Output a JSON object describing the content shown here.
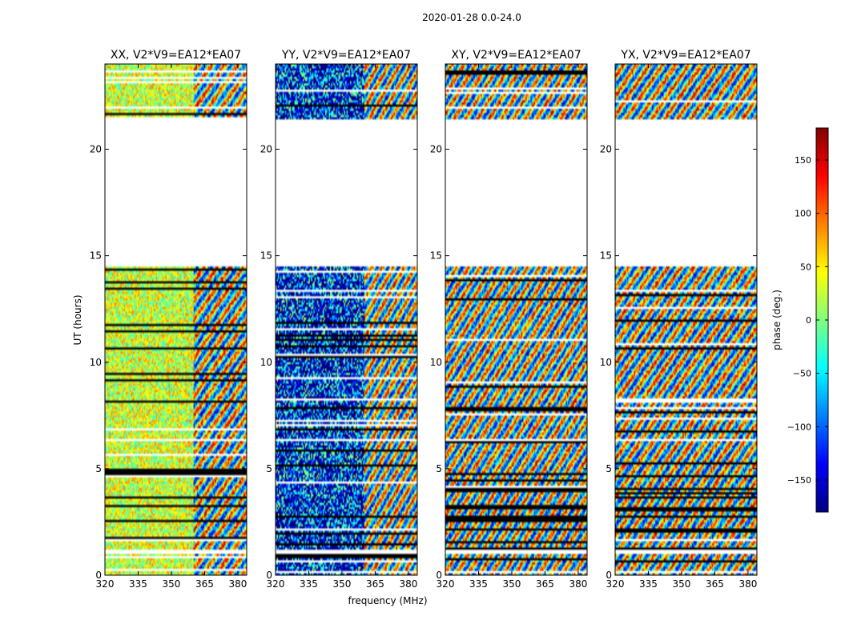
{
  "figure": {
    "suptitle": "2020-01-28 0.0-24.0",
    "xlabel": "frequency (MHz)",
    "ylabel": "UT (hours)"
  },
  "colors": {
    "jet": [
      "#000080",
      "#0000ff",
      "#0080ff",
      "#00ffff",
      "#80ff80",
      "#ffff00",
      "#ff8000",
      "#ff0000",
      "#800000"
    ],
    "flag": "#000000",
    "empty": "#ffffff"
  },
  "chart_data": {
    "type": "heatmap",
    "xlim": [
      320,
      384
    ],
    "ylim": [
      0,
      24
    ],
    "xticks": [
      320,
      335,
      350,
      365,
      380
    ],
    "yticks": [
      0,
      5,
      10,
      15,
      20
    ],
    "xtick_labels": [
      "320",
      "335",
      "350",
      "365",
      "380"
    ],
    "ytick_labels": [
      "0",
      "5",
      "10",
      "15",
      "20"
    ],
    "colorbar": {
      "label": "phase (deg.)",
      "range": [
        -180,
        180
      ],
      "ticks": [
        150,
        100,
        50,
        0,
        -50,
        -100,
        -150
      ],
      "tick_labels": [
        "150",
        "100",
        "50",
        "0",
        "−50",
        "−100",
        "−150"
      ],
      "colormap": "jet"
    },
    "panels": [
      {
        "title": "XX, V2*V9=EA12*EA07",
        "polarization": "XX",
        "seed": 11
      },
      {
        "title": "YY, V2*V9=EA12*EA07",
        "polarization": "YY",
        "seed": 23
      },
      {
        "title": "XY, V2*V9=EA12*EA07",
        "polarization": "XY",
        "seed": 37
      },
      {
        "title": "YX, V2*V9=EA12*EA07",
        "polarization": "YX",
        "seed": 51
      }
    ],
    "data_coverage_hours": [
      [
        0.0,
        1.0
      ],
      [
        1.2,
        6.3
      ],
      [
        6.4,
        14.5
      ],
      [
        21.4,
        24.0
      ]
    ],
    "no_data_hours": [
      [
        14.5,
        21.4
      ]
    ]
  }
}
